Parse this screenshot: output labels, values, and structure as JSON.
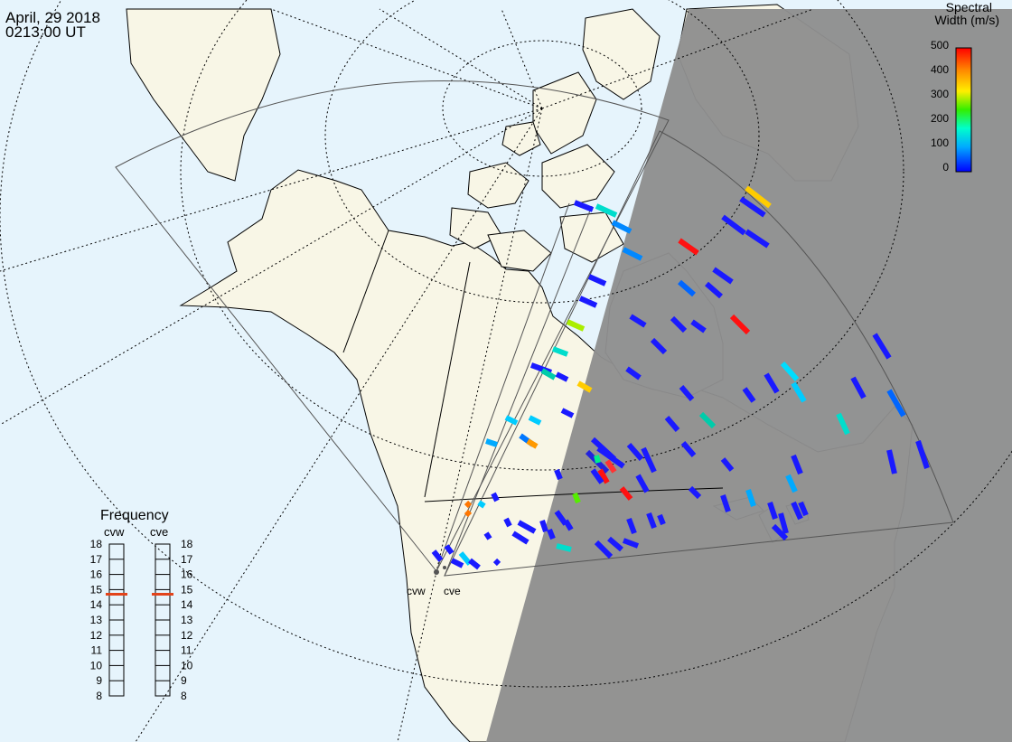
{
  "header": {
    "date": "April, 29 2018",
    "time": "0213:00 UT"
  },
  "colorbar": {
    "title_line1": "Spectral",
    "title_line2": "Width (m/s)",
    "ticks": [
      "500",
      "400",
      "300",
      "200",
      "100",
      "0"
    ],
    "scale": "rainbow"
  },
  "frequency_panel": {
    "title": "Frequency",
    "left_label": "cvw",
    "right_label": "cve",
    "levels": [
      "18",
      "17",
      "16",
      "15",
      "14",
      "13",
      "12",
      "11",
      "10",
      "9",
      "8"
    ],
    "cvw_value": 14.7,
    "cve_value": 14.7,
    "marker_color": "#e2431a"
  },
  "radars": {
    "cvw_label": "cvw",
    "cve_label": "cve"
  },
  "colors": {
    "ocean": "#e6f4fc",
    "land": "#f8f6e6",
    "night": "#8f8f8f"
  }
}
